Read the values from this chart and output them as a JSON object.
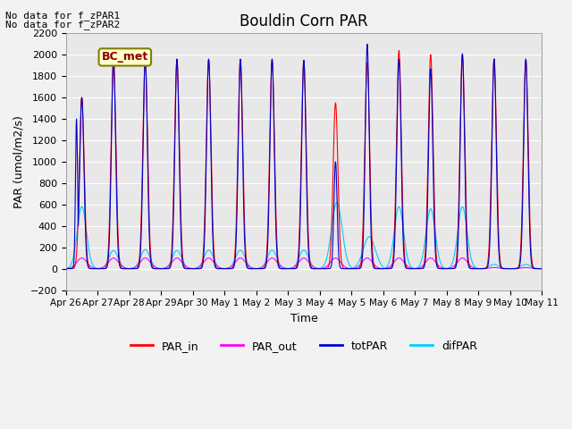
{
  "title": "Bouldin Corn PAR",
  "ylabel": "PAR (umol/m2/s)",
  "xlabel": "Time",
  "ylim": [
    -200,
    2200
  ],
  "yticks": [
    -200,
    0,
    200,
    400,
    600,
    800,
    1000,
    1200,
    1400,
    1600,
    1800,
    2000,
    2200
  ],
  "bg_color": "#e8e8e8",
  "text_annotations": [
    "No data for f_zPAR1",
    "No data for f_zPAR2"
  ],
  "legend_label": "BC_met",
  "series_colors": {
    "PAR_in": "#ff0000",
    "PAR_out": "#ff00ff",
    "totPAR": "#0000cc",
    "difPAR": "#00ccff"
  },
  "xtick_labels": [
    "Apr 26",
    "Apr 27",
    "Apr 28",
    "Apr 29",
    "Apr 30",
    "May 1",
    "May 2",
    "May 3",
    "May 4",
    "May 5",
    "May 6",
    "May 7",
    "May 8",
    "May 9",
    "May 10",
    "May 11"
  ]
}
